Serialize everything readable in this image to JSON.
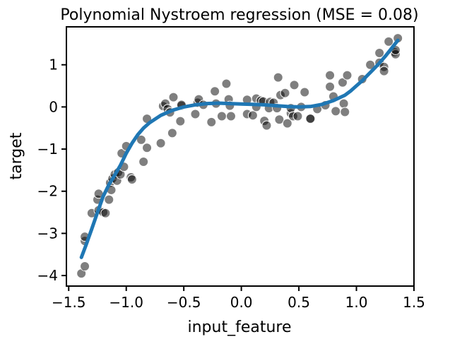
{
  "chart_data": {
    "type": "scatter",
    "title": "Polynomial Nystroem regression (MSE = 0.08)",
    "xlabel": "input_feature",
    "ylabel": "target",
    "xlim": [
      -1.52,
      1.5
    ],
    "ylim": [
      -4.25,
      1.9
    ],
    "xticks": [
      -1.5,
      -1.0,
      -0.5,
      0.0,
      0.5,
      1.0,
      1.5
    ],
    "xtick_labels": [
      "−1.5",
      "−1.0",
      "−0.5",
      "0.0",
      "0.5",
      "1.0",
      "1.5"
    ],
    "yticks": [
      -4,
      -3,
      -2,
      -1,
      0,
      1
    ],
    "ytick_labels": [
      "−4",
      "−3",
      "−2",
      "−1",
      "0",
      "1"
    ],
    "grid": false,
    "colors": {
      "points": "#000000",
      "line": "#1f77b4"
    },
    "series": [
      {
        "kind": "scatter",
        "points": [
          [
            -1.39,
            -3.95
          ],
          [
            -1.36,
            -3.78
          ],
          [
            -1.36,
            -3.18
          ],
          [
            -1.36,
            -3.08
          ],
          [
            -1.3,
            -2.52
          ],
          [
            -1.25,
            -2.2
          ],
          [
            -1.24,
            -2.06
          ],
          [
            -1.24,
            -2.45
          ],
          [
            -1.2,
            -2.5
          ],
          [
            -1.18,
            -2.52
          ],
          [
            -1.15,
            -2.2
          ],
          [
            -1.14,
            -1.8
          ],
          [
            -1.13,
            -1.97
          ],
          [
            -1.12,
            -1.7
          ],
          [
            -1.1,
            -1.6
          ],
          [
            -1.08,
            -1.75
          ],
          [
            -1.07,
            -1.55
          ],
          [
            -1.05,
            -1.6
          ],
          [
            -1.04,
            -1.1
          ],
          [
            -1.02,
            -1.42
          ],
          [
            -1.0,
            -0.93
          ],
          [
            -0.96,
            -1.67
          ],
          [
            -0.95,
            -1.72
          ],
          [
            -0.87,
            -0.78
          ],
          [
            -0.85,
            -1.3
          ],
          [
            -0.82,
            -0.97
          ],
          [
            -0.82,
            -0.28
          ],
          [
            -0.7,
            -0.86
          ],
          [
            -0.68,
            0.02
          ],
          [
            -0.66,
            0.08
          ],
          [
            -0.64,
            -0.05
          ],
          [
            -0.62,
            -0.13
          ],
          [
            -0.6,
            -0.62
          ],
          [
            -0.59,
            0.23
          ],
          [
            -0.53,
            -0.34
          ],
          [
            -0.52,
            0.03
          ],
          [
            -0.52,
            0.05
          ],
          [
            -0.4,
            -0.17
          ],
          [
            -0.38,
            0.1
          ],
          [
            -0.37,
            0.18
          ],
          [
            -0.33,
            0.05
          ],
          [
            -0.26,
            -0.36
          ],
          [
            -0.23,
            0.37
          ],
          [
            -0.22,
            0.08
          ],
          [
            -0.17,
            -0.22
          ],
          [
            -0.13,
            0.55
          ],
          [
            -0.11,
            0.18
          ],
          [
            -0.1,
            0.03
          ],
          [
            -0.09,
            -0.22
          ],
          [
            0.05,
            0.17
          ],
          [
            0.05,
            -0.17
          ],
          [
            0.1,
            -0.2
          ],
          [
            0.13,
            0.2
          ],
          [
            0.13,
            0.0
          ],
          [
            0.17,
            0.15
          ],
          [
            0.19,
            0.13
          ],
          [
            0.2,
            -0.33
          ],
          [
            0.22,
            -0.44
          ],
          [
            0.24,
            -0.03
          ],
          [
            0.25,
            0.12
          ],
          [
            0.28,
            0.1
          ],
          [
            0.31,
            -0.03
          ],
          [
            0.32,
            0.7
          ],
          [
            0.33,
            -0.3
          ],
          [
            0.34,
            0.28
          ],
          [
            0.38,
            0.33
          ],
          [
            0.4,
            -0.39
          ],
          [
            0.43,
            -0.15
          ],
          [
            0.43,
            -0.03
          ],
          [
            0.45,
            -0.22
          ],
          [
            0.46,
            0.52
          ],
          [
            0.49,
            -0.22
          ],
          [
            0.52,
            0.0
          ],
          [
            0.55,
            0.35
          ],
          [
            0.6,
            -0.27
          ],
          [
            0.6,
            -0.28
          ],
          [
            0.66,
            -0.05
          ],
          [
            0.73,
            0.04
          ],
          [
            0.77,
            0.75
          ],
          [
            0.77,
            0.48
          ],
          [
            0.8,
            0.25
          ],
          [
            0.82,
            -0.1
          ],
          [
            0.88,
            0.58
          ],
          [
            0.89,
            0.08
          ],
          [
            0.9,
            -0.12
          ],
          [
            0.92,
            0.75
          ],
          [
            1.05,
            0.66
          ],
          [
            1.12,
            1.0
          ],
          [
            1.2,
            1.28
          ],
          [
            1.2,
            1.05
          ],
          [
            1.24,
            0.95
          ],
          [
            1.24,
            0.85
          ],
          [
            1.28,
            1.55
          ],
          [
            1.33,
            1.3
          ],
          [
            1.34,
            1.25
          ],
          [
            1.34,
            1.35
          ],
          [
            1.36,
            1.63
          ]
        ]
      },
      {
        "kind": "line",
        "points": [
          [
            -1.39,
            -3.57
          ],
          [
            -1.35,
            -3.28
          ],
          [
            -1.3,
            -2.9
          ],
          [
            -1.25,
            -2.5
          ],
          [
            -1.2,
            -2.12
          ],
          [
            -1.15,
            -1.84
          ],
          [
            -1.1,
            -1.62
          ],
          [
            -1.05,
            -1.38
          ],
          [
            -1.0,
            -1.1
          ],
          [
            -0.95,
            -0.86
          ],
          [
            -0.9,
            -0.66
          ],
          [
            -0.85,
            -0.5
          ],
          [
            -0.8,
            -0.38
          ],
          [
            -0.7,
            -0.2
          ],
          [
            -0.6,
            -0.08
          ],
          [
            -0.5,
            0.0
          ],
          [
            -0.4,
            0.05
          ],
          [
            -0.3,
            0.08
          ],
          [
            -0.2,
            0.09
          ],
          [
            -0.1,
            0.08
          ],
          [
            0.0,
            0.07
          ],
          [
            0.1,
            0.06
          ],
          [
            0.2,
            0.05
          ],
          [
            0.3,
            0.03
          ],
          [
            0.4,
            0.01
          ],
          [
            0.5,
            0.0
          ],
          [
            0.6,
            0.01
          ],
          [
            0.7,
            0.06
          ],
          [
            0.8,
            0.15
          ],
          [
            0.9,
            0.28
          ],
          [
            0.95,
            0.38
          ],
          [
            1.0,
            0.5
          ],
          [
            1.05,
            0.62
          ],
          [
            1.1,
            0.76
          ],
          [
            1.15,
            0.9
          ],
          [
            1.2,
            1.04
          ],
          [
            1.25,
            1.2
          ],
          [
            1.3,
            1.37
          ],
          [
            1.36,
            1.58
          ]
        ]
      }
    ]
  }
}
